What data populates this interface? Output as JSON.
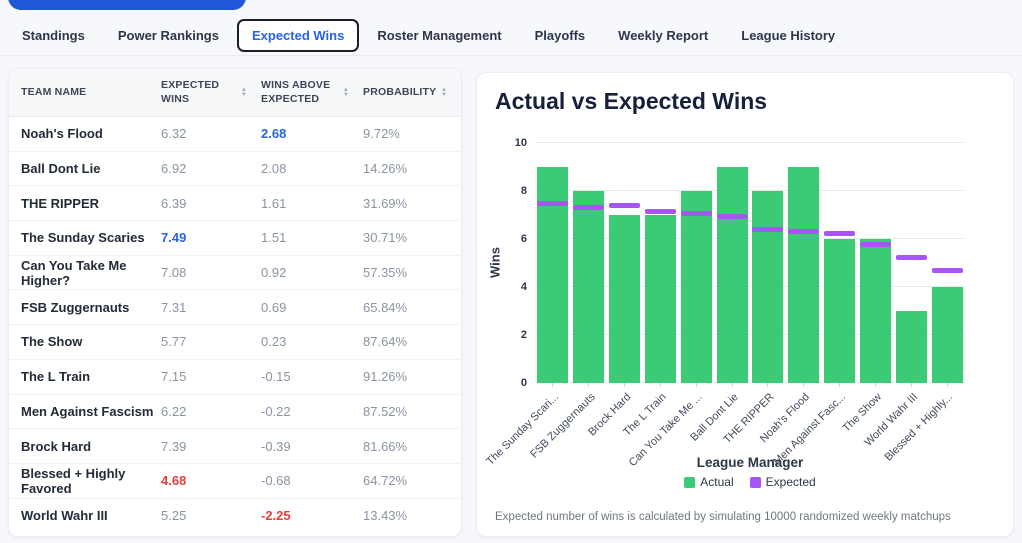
{
  "colors": {
    "accent_blue": "#2563eb",
    "positive_blue": "#2563eb",
    "negative_red": "#e53e3e",
    "bar_green": "#3bcb77",
    "expected_purple": "#a855f7",
    "top_pill_blue": "#2057d8"
  },
  "tabs": {
    "items": [
      {
        "label": "Standings",
        "active": false
      },
      {
        "label": "Power Rankings",
        "active": false
      },
      {
        "label": "Expected Wins",
        "active": true
      },
      {
        "label": "Roster Management",
        "active": false
      },
      {
        "label": "Playoffs",
        "active": false
      },
      {
        "label": "Weekly Report",
        "active": false
      },
      {
        "label": "League History",
        "active": false
      }
    ]
  },
  "table": {
    "columns": [
      {
        "label": "TEAM NAME",
        "sortable": false
      },
      {
        "label": "EXPECTED WINS",
        "sortable": true
      },
      {
        "label": "WINS ABOVE EXPECTED",
        "sortable": true
      },
      {
        "label": "PROBABILITY",
        "sortable": true
      }
    ],
    "rows": [
      {
        "team": "Noah's Flood",
        "expected": "6.32",
        "above": "2.68",
        "probability": "9.72%",
        "expected_style": "default",
        "above_style": "blue"
      },
      {
        "team": "Ball Dont Lie",
        "expected": "6.92",
        "above": "2.08",
        "probability": "14.26%",
        "expected_style": "default",
        "above_style": "default"
      },
      {
        "team": "THE RIPPER",
        "expected": "6.39",
        "above": "1.61",
        "probability": "31.69%",
        "expected_style": "default",
        "above_style": "default"
      },
      {
        "team": "The Sunday Scaries",
        "expected": "7.49",
        "above": "1.51",
        "probability": "30.71%",
        "expected_style": "blue",
        "above_style": "default"
      },
      {
        "team": "Can You Take Me Higher?",
        "expected": "7.08",
        "above": "0.92",
        "probability": "57.35%",
        "expected_style": "default",
        "above_style": "default"
      },
      {
        "team": "FSB Zuggernauts",
        "expected": "7.31",
        "above": "0.69",
        "probability": "65.84%",
        "expected_style": "default",
        "above_style": "default"
      },
      {
        "team": "The Show",
        "expected": "5.77",
        "above": "0.23",
        "probability": "87.64%",
        "expected_style": "default",
        "above_style": "default"
      },
      {
        "team": "The L Train",
        "expected": "7.15",
        "above": "-0.15",
        "probability": "91.26%",
        "expected_style": "default",
        "above_style": "default"
      },
      {
        "team": "Men Against Fascism",
        "expected": "6.22",
        "above": "-0.22",
        "probability": "87.52%",
        "expected_style": "default",
        "above_style": "default"
      },
      {
        "team": "Brock Hard",
        "expected": "7.39",
        "above": "-0.39",
        "probability": "81.66%",
        "expected_style": "default",
        "above_style": "default"
      },
      {
        "team": "Blessed + Highly Favored",
        "expected": "4.68",
        "above": "-0.68",
        "probability": "64.72%",
        "expected_style": "red",
        "above_style": "default"
      },
      {
        "team": "World Wahr III",
        "expected": "5.25",
        "above": "-2.25",
        "probability": "13.43%",
        "expected_style": "default",
        "above_style": "red"
      }
    ]
  },
  "chart": {
    "title": "Actual vs Expected Wins",
    "ylabel": "Wins",
    "xlabel": "League Manager",
    "legend": [
      {
        "label": "Actual",
        "color": "#3bcb77"
      },
      {
        "label": "Expected",
        "color": "#a855f7"
      }
    ],
    "footnote": "Expected number of wins is calculated by simulating 10000 randomized weekly matchups"
  },
  "chart_data": {
    "type": "bar",
    "title": "Actual vs Expected Wins",
    "xlabel": "League Manager",
    "ylabel": "Wins",
    "ylim": [
      0,
      10
    ],
    "yticks": [
      0,
      2,
      4,
      6,
      8,
      10
    ],
    "grid": true,
    "legend_position": "bottom",
    "categories": [
      "The Sunday Scari...",
      "FSB Zuggernauts",
      "Brock Hard",
      "The L Train",
      "Can You Take Me ...",
      "Ball Dont Lie",
      "THE RIPPER",
      "Noah's Flood",
      "Men Against Fasc...",
      "The Show",
      "World Wahr III",
      "Blessed + Highly..."
    ],
    "series": [
      {
        "name": "Actual",
        "style": "bar",
        "color": "#3bcb77",
        "values": [
          9,
          8,
          7,
          7,
          8,
          9,
          8,
          9,
          6,
          6,
          3,
          4
        ]
      },
      {
        "name": "Expected",
        "style": "dash",
        "color": "#a855f7",
        "values": [
          7.49,
          7.31,
          7.39,
          7.15,
          7.08,
          6.92,
          6.39,
          6.32,
          6.22,
          5.77,
          5.25,
          4.68
        ]
      }
    ]
  }
}
